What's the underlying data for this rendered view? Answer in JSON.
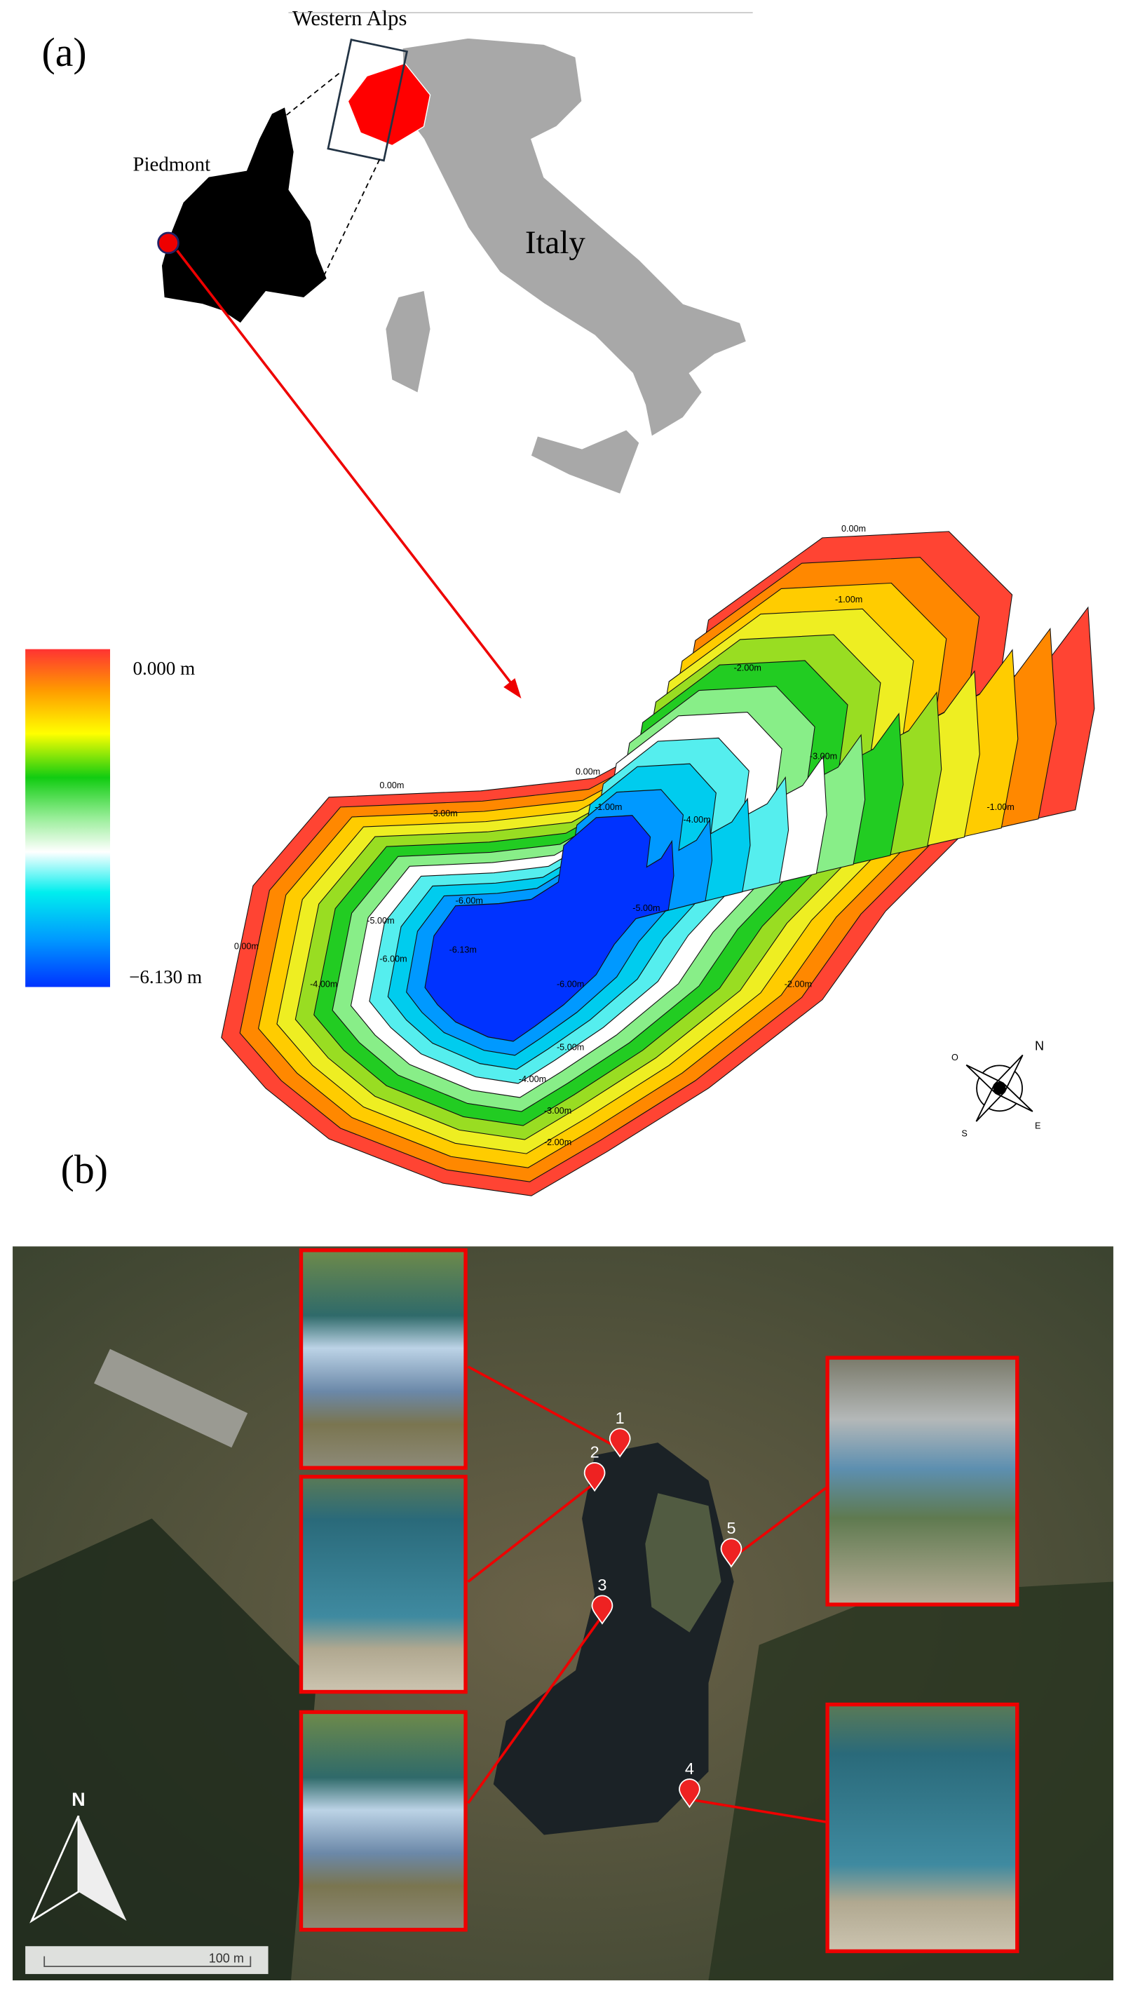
{
  "panel_a": {
    "label": "(a)",
    "region_labels": {
      "alps": "Western Alps",
      "piedmont": "Piedmont",
      "country": "Italy"
    },
    "legend": {
      "max": "0.000 m",
      "min": "−6.130 m"
    },
    "contour_labels": [
      "0.00m",
      "-1.00m",
      "-2.00m",
      "-3.00m",
      "-4.00m",
      "-5.00m",
      "-6.00m",
      "-6.13m"
    ],
    "compass": [
      "N",
      "E",
      "S",
      "O"
    ]
  },
  "panel_b": {
    "label": "(b)",
    "sites": [
      "1",
      "2",
      "3",
      "4",
      "5"
    ],
    "north": "N",
    "scale_bar": "100 m"
  }
}
